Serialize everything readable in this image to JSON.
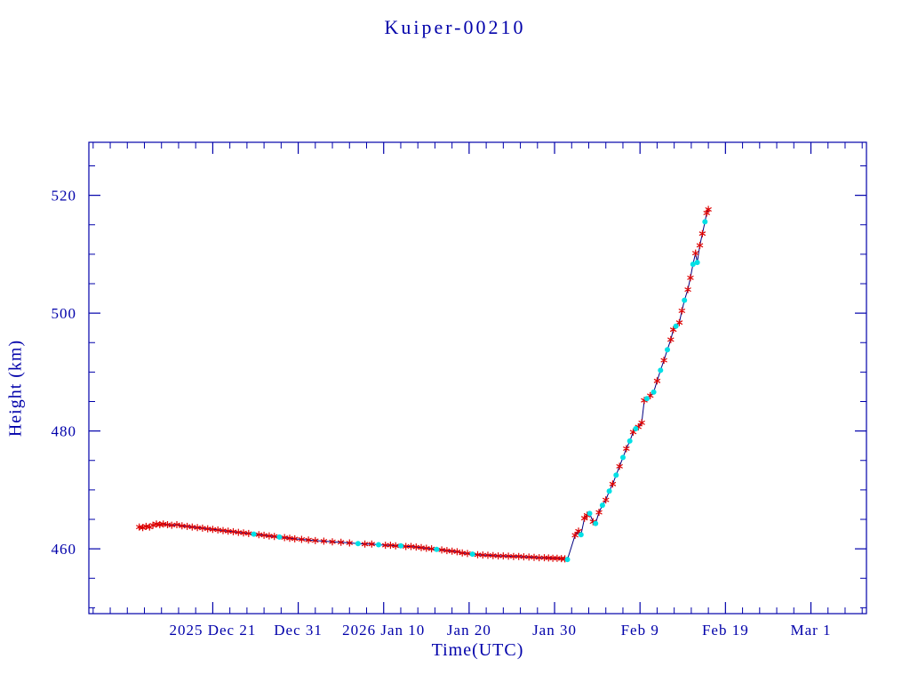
{
  "chart_data": {
    "type": "line",
    "title": "Kuiper-00210",
    "xlabel": "Time(UTC)",
    "ylabel": "Height (km)",
    "x_unit": "days, 0 = 2025 Dec 11",
    "xlim": [
      -4.5,
      86.5
    ],
    "ylim": [
      449,
      529
    ],
    "xticks": [
      {
        "x": 10,
        "label": "2025 Dec 21"
      },
      {
        "x": 20,
        "label": "Dec 31"
      },
      {
        "x": 30,
        "label": "2026 Jan 10"
      },
      {
        "x": 40,
        "label": "Jan 20"
      },
      {
        "x": 50,
        "label": "Jan 30"
      },
      {
        "x": 60,
        "label": "Feb 9"
      },
      {
        "x": 70,
        "label": "Feb 19"
      },
      {
        "x": 80,
        "label": "Mar 1"
      }
    ],
    "yticks": [
      {
        "y": 460,
        "label": "460"
      },
      {
        "y": 480,
        "label": "480"
      },
      {
        "y": 500,
        "label": "500"
      },
      {
        "y": 520,
        "label": "520"
      }
    ],
    "minor_x_step": 2,
    "minor_y_step": 5,
    "grid": false,
    "legend": "none",
    "colors": {
      "axis": "#0000aa",
      "line": "#000080",
      "red_marker": "#dd0000",
      "cyan_marker": "#00e0e6",
      "background": "#ffffff"
    },
    "series": [
      {
        "name": "height",
        "marker_legend": {
          "r": "red asterisk",
          "c": "cyan dot"
        },
        "points": [
          [
            1.4,
            463.7,
            "r"
          ],
          [
            1.8,
            463.6,
            "r"
          ],
          [
            2.2,
            463.8,
            "r"
          ],
          [
            2.6,
            463.7,
            "r"
          ],
          [
            3.0,
            464.0,
            "r"
          ],
          [
            3.4,
            464.2,
            "r"
          ],
          [
            3.8,
            464.1,
            "r"
          ],
          [
            4.2,
            464.2,
            "r"
          ],
          [
            4.7,
            464.1,
            "r"
          ],
          [
            5.2,
            464.0,
            "r"
          ],
          [
            5.8,
            464.1,
            "r"
          ],
          [
            6.4,
            463.9,
            "r"
          ],
          [
            7.0,
            463.8,
            "r"
          ],
          [
            7.6,
            463.7,
            "r"
          ],
          [
            8.2,
            463.6,
            "r"
          ],
          [
            8.8,
            463.5,
            "r"
          ],
          [
            9.4,
            463.4,
            "r"
          ],
          [
            10.0,
            463.3,
            "r"
          ],
          [
            10.6,
            463.2,
            "r"
          ],
          [
            11.2,
            463.1,
            "r"
          ],
          [
            11.8,
            463.0,
            "r"
          ],
          [
            12.4,
            462.9,
            "r"
          ],
          [
            13.0,
            462.8,
            "r"
          ],
          [
            13.6,
            462.7,
            "r"
          ],
          [
            14.2,
            462.6,
            "r"
          ],
          [
            14.8,
            462.5,
            "c"
          ],
          [
            15.4,
            462.4,
            "r"
          ],
          [
            16.0,
            462.3,
            "r"
          ],
          [
            16.6,
            462.2,
            "r"
          ],
          [
            17.2,
            462.1,
            "r"
          ],
          [
            17.8,
            462.0,
            "c"
          ],
          [
            18.4,
            461.9,
            "r"
          ],
          [
            19.0,
            461.8,
            "r"
          ],
          [
            19.6,
            461.7,
            "r"
          ],
          [
            20.4,
            461.6,
            "r"
          ],
          [
            21.2,
            461.5,
            "r"
          ],
          [
            22.0,
            461.4,
            "r"
          ],
          [
            23.0,
            461.3,
            "r"
          ],
          [
            24.0,
            461.2,
            "r"
          ],
          [
            25.0,
            461.1,
            "r"
          ],
          [
            26.0,
            461.0,
            "r"
          ],
          [
            27.0,
            460.9,
            "c"
          ],
          [
            27.8,
            460.8,
            "r"
          ],
          [
            28.6,
            460.8,
            "r"
          ],
          [
            29.4,
            460.7,
            "c"
          ],
          [
            30.2,
            460.6,
            "r"
          ],
          [
            30.8,
            460.6,
            "r"
          ],
          [
            31.4,
            460.5,
            "r"
          ],
          [
            32.0,
            460.5,
            "c"
          ],
          [
            32.6,
            460.4,
            "r"
          ],
          [
            33.2,
            460.4,
            "r"
          ],
          [
            33.8,
            460.3,
            "r"
          ],
          [
            34.4,
            460.2,
            "r"
          ],
          [
            35.0,
            460.1,
            "r"
          ],
          [
            35.6,
            460.0,
            "r"
          ],
          [
            36.2,
            459.9,
            "c"
          ],
          [
            36.8,
            459.8,
            "r"
          ],
          [
            37.4,
            459.7,
            "r"
          ],
          [
            38.0,
            459.6,
            "r"
          ],
          [
            38.6,
            459.5,
            "r"
          ],
          [
            39.2,
            459.3,
            "r"
          ],
          [
            39.8,
            459.2,
            "r"
          ],
          [
            40.4,
            459.1,
            "c"
          ],
          [
            41.0,
            459.0,
            "r"
          ],
          [
            41.6,
            458.95,
            "r"
          ],
          [
            42.2,
            458.9,
            "r"
          ],
          [
            42.8,
            458.85,
            "r"
          ],
          [
            43.4,
            458.8,
            "r"
          ],
          [
            44.0,
            458.8,
            "r"
          ],
          [
            44.6,
            458.75,
            "r"
          ],
          [
            45.2,
            458.7,
            "r"
          ],
          [
            45.8,
            458.7,
            "r"
          ],
          [
            46.4,
            458.65,
            "r"
          ],
          [
            47.0,
            458.6,
            "r"
          ],
          [
            47.6,
            458.55,
            "r"
          ],
          [
            48.2,
            458.5,
            "r"
          ],
          [
            48.8,
            458.5,
            "r"
          ],
          [
            49.3,
            458.45,
            "r"
          ],
          [
            49.8,
            458.4,
            "r"
          ],
          [
            50.3,
            458.4,
            "r"
          ],
          [
            50.8,
            458.35,
            "r"
          ],
          [
            51.2,
            458.3,
            "r"
          ],
          [
            51.5,
            458.2,
            "c"
          ],
          [
            52.4,
            462.3,
            "r"
          ],
          [
            52.8,
            463.0,
            "r"
          ],
          [
            53.1,
            462.4,
            "c"
          ],
          [
            53.5,
            465.2,
            "r"
          ],
          [
            53.8,
            465.7,
            "r"
          ],
          [
            54.1,
            466.0,
            "c"
          ],
          [
            54.5,
            464.6,
            "r"
          ],
          [
            54.8,
            464.3,
            "c"
          ],
          [
            55.2,
            466.2,
            "r"
          ],
          [
            55.6,
            467.4,
            "c"
          ],
          [
            56.0,
            468.3,
            "r"
          ],
          [
            56.4,
            469.8,
            "c"
          ],
          [
            56.8,
            471.0,
            "r"
          ],
          [
            57.2,
            472.5,
            "c"
          ],
          [
            57.6,
            474.0,
            "r"
          ],
          [
            58.0,
            475.5,
            "c"
          ],
          [
            58.4,
            477.0,
            "r"
          ],
          [
            58.8,
            478.3,
            "c"
          ],
          [
            59.2,
            479.8,
            "r"
          ],
          [
            59.5,
            480.4,
            "c"
          ],
          [
            59.8,
            480.7,
            "r"
          ],
          [
            60.2,
            481.4,
            "r"
          ],
          [
            60.5,
            485.2,
            "r"
          ],
          [
            60.8,
            485.5,
            "c"
          ],
          [
            61.2,
            486.0,
            "r"
          ],
          [
            61.6,
            486.6,
            "c"
          ],
          [
            62.0,
            488.5,
            "r"
          ],
          [
            62.4,
            490.3,
            "c"
          ],
          [
            62.8,
            492.0,
            "r"
          ],
          [
            63.2,
            493.8,
            "c"
          ],
          [
            63.6,
            495.5,
            "r"
          ],
          [
            63.9,
            497.2,
            "r"
          ],
          [
            64.2,
            497.8,
            "c"
          ],
          [
            64.6,
            498.4,
            "r"
          ],
          [
            64.9,
            500.4,
            "r"
          ],
          [
            65.2,
            502.2,
            "c"
          ],
          [
            65.6,
            504.0,
            "r"
          ],
          [
            65.9,
            506.0,
            "r"
          ],
          [
            66.2,
            508.3,
            "c"
          ],
          [
            66.5,
            510.2,
            "r"
          ],
          [
            66.7,
            508.6,
            "c"
          ],
          [
            67.0,
            511.5,
            "r"
          ],
          [
            67.3,
            513.5,
            "r"
          ],
          [
            67.6,
            515.5,
            "c"
          ],
          [
            67.8,
            517.0,
            "r"
          ],
          [
            68.0,
            517.6,
            "r"
          ]
        ]
      }
    ]
  }
}
